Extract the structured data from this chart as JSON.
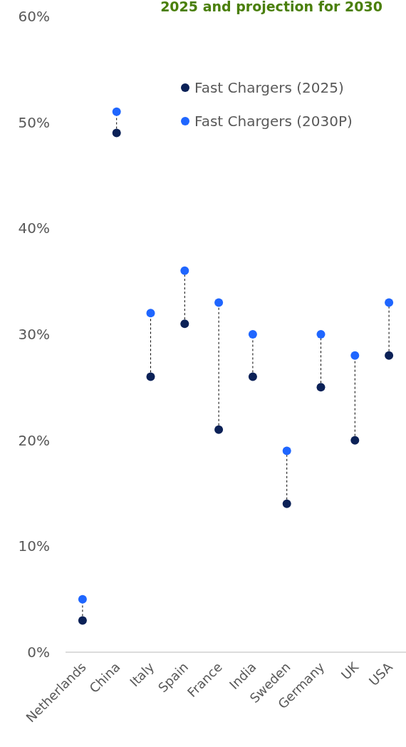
{
  "chart_data": {
    "type": "scatter",
    "title": "2025 and projection for 2030",
    "categories": [
      "Netherlands",
      "China",
      "Italy",
      "Spain",
      "France",
      "India",
      "Sweden",
      "Germany",
      "UK",
      "USA"
    ],
    "series": [
      {
        "name": "Fast Chargers (2025)",
        "color": "#0b2157",
        "values": [
          3,
          49,
          26,
          31,
          21,
          26,
          14,
          25,
          20,
          28
        ]
      },
      {
        "name": "Fast Chargers (2030P)",
        "color": "#1f66ff",
        "values": [
          5,
          51,
          32,
          36,
          33,
          30,
          19,
          30,
          28,
          33
        ]
      }
    ],
    "ylim": [
      0,
      60
    ],
    "yticks": [
      {
        "value": 0,
        "label": "0%"
      },
      {
        "value": 10,
        "label": "10%"
      },
      {
        "value": 20,
        "label": "20%"
      },
      {
        "value": 30,
        "label": "30%"
      },
      {
        "value": 40,
        "label": "40%"
      },
      {
        "value": 50,
        "label": "50%"
      },
      {
        "value": 60,
        "label": "60%"
      }
    ],
    "marker": "circle",
    "line_style": "dashed",
    "legend": "top right",
    "grid": false
  }
}
